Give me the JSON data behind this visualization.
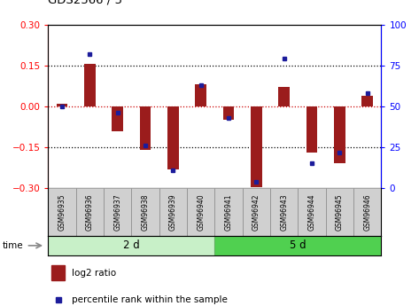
{
  "title": "GDS2566 / 5",
  "samples": [
    "GSM96935",
    "GSM96936",
    "GSM96937",
    "GSM96938",
    "GSM96939",
    "GSM96940",
    "GSM96941",
    "GSM96942",
    "GSM96943",
    "GSM96944",
    "GSM96945",
    "GSM96946"
  ],
  "log2_ratio": [
    0.01,
    0.155,
    -0.09,
    -0.16,
    -0.23,
    0.08,
    -0.05,
    -0.295,
    0.07,
    -0.17,
    -0.21,
    0.04
  ],
  "percentile_rank": [
    50,
    82,
    46,
    26,
    11,
    63,
    43,
    4,
    79,
    15,
    22,
    58
  ],
  "group1_label": "2 d",
  "group2_label": "5 d",
  "group1_count": 6,
  "group2_count": 6,
  "ylim_left": [
    -0.3,
    0.3
  ],
  "ylim_right": [
    0,
    100
  ],
  "yticks_left": [
    -0.3,
    -0.15,
    0.0,
    0.15,
    0.3
  ],
  "yticks_right": [
    0,
    25,
    50,
    75,
    100
  ],
  "bar_color": "#9B1C1C",
  "dot_color": "#1C1C9B",
  "hline_color_red": "#CC0000",
  "dotted_vals": [
    -0.15,
    0.0,
    0.15
  ],
  "bg_color": "#FFFFFF",
  "group1_bg": "#c8f0c8",
  "group2_bg": "#50d050",
  "tick_label_bg": "#d0d0d0",
  "time_label": "time",
  "legend_bar_label": "log2 ratio",
  "legend_dot_label": "percentile rank within the sample",
  "bar_width": 0.4
}
